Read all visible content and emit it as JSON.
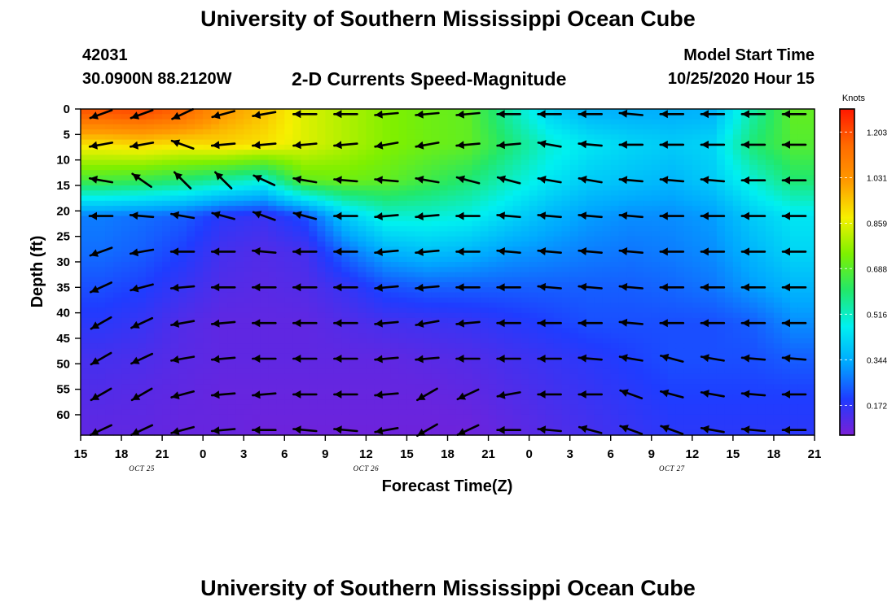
{
  "header": {
    "title": "University of Southern Mississippi Ocean Cube",
    "station_id": "42031",
    "station_location": "30.0900N 88.2120W",
    "subtitle": "2-D Currents Speed-Magnitude",
    "model_start_label": "Model Start Time",
    "model_start_value": "10/25/2020 Hour 15"
  },
  "footer": {
    "title": "University of Southern Mississippi Ocean Cube"
  },
  "colors": {
    "arrow": "#000000",
    "scale": [
      "#7a1fd6",
      "#1f3cff",
      "#00a8ff",
      "#00f0f0",
      "#22e86a",
      "#7ef000",
      "#f6f000",
      "#ff9a00",
      "#ff6a00",
      "#ff1800"
    ]
  },
  "chart_data": {
    "type": "heatmap",
    "title": "2-D Currents Speed-Magnitude",
    "xlabel": "Forecast Time(Z)",
    "ylabel": "Depth (ft)",
    "x_tick_labels": [
      "15",
      "18",
      "21",
      "0",
      "3",
      "6",
      "9",
      "12",
      "15",
      "18",
      "21",
      "0",
      "3",
      "6",
      "9",
      "12",
      "15",
      "18",
      "21"
    ],
    "x_range_hours": [
      0,
      54
    ],
    "date_labels": [
      {
        "label": "OCT 25",
        "hour": 4.5
      },
      {
        "label": "OCT 26",
        "hour": 21
      },
      {
        "label": "OCT 27",
        "hour": 43.5
      }
    ],
    "y_tick_labels": [
      "0",
      "5",
      "10",
      "15",
      "20",
      "25",
      "30",
      "35",
      "40",
      "45",
      "50",
      "55",
      "60"
    ],
    "y_range": [
      0,
      64
    ],
    "y_inverted": true,
    "colorbar": {
      "unit": "Knots",
      "ticks": [
        "0.172",
        "0.344",
        "0.516",
        "0.688",
        "0.859",
        "1.031",
        "1.203"
      ],
      "range": [
        0.06,
        1.29
      ]
    },
    "vector_field": {
      "x_hours": [
        1.5,
        4.5,
        7.5,
        10.5,
        13.5,
        16.5,
        19.5,
        22.5,
        25.5,
        28.5,
        31.5,
        34.5,
        37.5,
        40.5,
        43.5,
        46.5,
        49.5,
        52.5
      ],
      "depths": [
        1,
        7,
        14,
        21,
        28,
        35,
        42,
        49,
        56,
        63
      ],
      "speed_rows": [
        [
          1.18,
          1.2,
          1.15,
          1.02,
          0.95,
          0.85,
          0.8,
          0.75,
          0.72,
          0.7,
          0.55,
          0.42,
          0.36,
          0.35,
          0.35,
          0.36,
          0.55,
          0.7
        ],
        [
          0.9,
          0.92,
          0.9,
          0.92,
          0.9,
          0.85,
          0.8,
          0.75,
          0.72,
          0.7,
          0.6,
          0.5,
          0.45,
          0.42,
          0.4,
          0.42,
          0.6,
          0.68
        ],
        [
          0.66,
          0.64,
          0.6,
          0.55,
          0.5,
          0.7,
          0.72,
          0.7,
          0.65,
          0.6,
          0.52,
          0.45,
          0.4,
          0.38,
          0.36,
          0.4,
          0.5,
          0.6
        ],
        [
          0.28,
          0.26,
          0.24,
          0.18,
          0.16,
          0.22,
          0.4,
          0.5,
          0.5,
          0.48,
          0.42,
          0.36,
          0.32,
          0.3,
          0.3,
          0.32,
          0.4,
          0.45
        ],
        [
          0.26,
          0.24,
          0.2,
          0.14,
          0.12,
          0.14,
          0.26,
          0.35,
          0.38,
          0.36,
          0.32,
          0.3,
          0.28,
          0.27,
          0.28,
          0.3,
          0.36,
          0.42
        ],
        [
          0.22,
          0.2,
          0.16,
          0.12,
          0.11,
          0.12,
          0.16,
          0.22,
          0.24,
          0.24,
          0.24,
          0.24,
          0.24,
          0.24,
          0.25,
          0.27,
          0.32,
          0.36
        ],
        [
          0.18,
          0.16,
          0.12,
          0.1,
          0.1,
          0.1,
          0.12,
          0.14,
          0.15,
          0.16,
          0.18,
          0.2,
          0.22,
          0.22,
          0.22,
          0.22,
          0.24,
          0.3
        ],
        [
          0.14,
          0.13,
          0.11,
          0.1,
          0.1,
          0.1,
          0.1,
          0.1,
          0.11,
          0.12,
          0.14,
          0.16,
          0.18,
          0.2,
          0.22,
          0.22,
          0.22,
          0.24
        ],
        [
          0.12,
          0.11,
          0.1,
          0.09,
          0.09,
          0.09,
          0.09,
          0.09,
          0.09,
          0.1,
          0.12,
          0.14,
          0.16,
          0.18,
          0.2,
          0.2,
          0.2,
          0.2
        ],
        [
          0.1,
          0.1,
          0.09,
          0.09,
          0.08,
          0.08,
          0.08,
          0.08,
          0.08,
          0.08,
          0.1,
          0.12,
          0.14,
          0.16,
          0.18,
          0.18,
          0.18,
          0.18
        ]
      ],
      "direction_deg_rows": [
        [
          200,
          200,
          205,
          195,
          190,
          180,
          180,
          185,
          185,
          185,
          180,
          180,
          180,
          175,
          180,
          180,
          180,
          180
        ],
        [
          190,
          190,
          160,
          185,
          185,
          185,
          185,
          190,
          190,
          185,
          185,
          170,
          175,
          180,
          180,
          180,
          180,
          180
        ],
        [
          170,
          145,
          135,
          135,
          155,
          170,
          175,
          175,
          170,
          165,
          165,
          170,
          170,
          175,
          175,
          175,
          180,
          180
        ],
        [
          180,
          175,
          170,
          165,
          160,
          165,
          180,
          185,
          185,
          180,
          175,
          175,
          175,
          175,
          180,
          180,
          180,
          180
        ],
        [
          200,
          190,
          180,
          180,
          175,
          180,
          180,
          185,
          185,
          180,
          175,
          175,
          175,
          175,
          180,
          180,
          180,
          180
        ],
        [
          205,
          195,
          185,
          180,
          180,
          180,
          180,
          185,
          185,
          180,
          180,
          175,
          175,
          175,
          180,
          180,
          180,
          180
        ],
        [
          210,
          205,
          190,
          185,
          180,
          180,
          180,
          185,
          190,
          185,
          180,
          180,
          180,
          175,
          180,
          180,
          180,
          180
        ],
        [
          210,
          205,
          190,
          185,
          180,
          180,
          180,
          185,
          185,
          180,
          180,
          180,
          175,
          170,
          165,
          170,
          175,
          175
        ],
        [
          210,
          210,
          195,
          185,
          185,
          180,
          180,
          185,
          210,
          205,
          190,
          180,
          180,
          160,
          165,
          170,
          175,
          180
        ],
        [
          205,
          205,
          195,
          185,
          180,
          175,
          175,
          190,
          210,
          205,
          180,
          175,
          165,
          160,
          160,
          170,
          175,
          180
        ]
      ]
    },
    "grid": false,
    "legend": "right"
  }
}
